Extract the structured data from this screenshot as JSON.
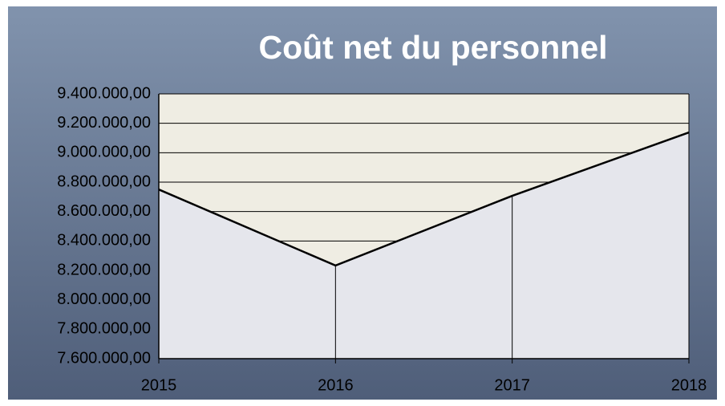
{
  "chart_data": {
    "type": "area",
    "title": "Coût net du personnel",
    "categories": [
      "2015",
      "2016",
      "2017",
      "2018"
    ],
    "values": [
      8750000,
      8233000,
      8707000,
      9138000
    ],
    "color": "#e5e6ec",
    "line_color": "#000000",
    "plot_background": "#efede3",
    "ylim": [
      7600000,
      9400000
    ],
    "yticks": [
      {
        "value": 7600000,
        "label": "7.600.000,00"
      },
      {
        "value": 7800000,
        "label": "7.800.000,00"
      },
      {
        "value": 8000000,
        "label": "8.000.000,00"
      },
      {
        "value": 8200000,
        "label": "8.200.000,00"
      },
      {
        "value": 8400000,
        "label": "8.400.000,00"
      },
      {
        "value": 8600000,
        "label": "8.600.000,00"
      },
      {
        "value": 8800000,
        "label": "8.800.000,00"
      },
      {
        "value": 9000000,
        "label": "9.000.000,00"
      },
      {
        "value": 9200000,
        "label": "9.200.000,00"
      },
      {
        "value": 9400000,
        "label": "9.400.000,00"
      }
    ],
    "grid": true
  }
}
